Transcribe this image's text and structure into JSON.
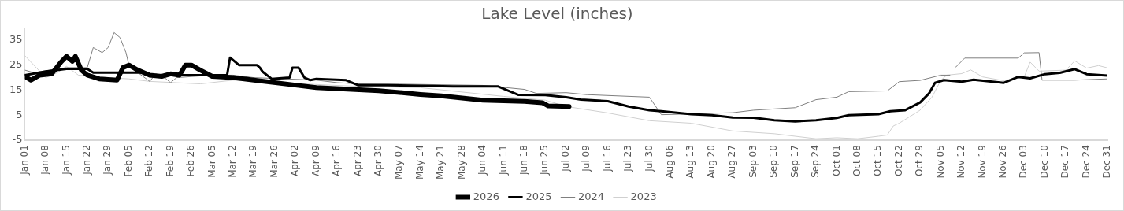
{
  "chart_data": {
    "type": "line",
    "title": "Lake Level (inches)",
    "legend": "bottom",
    "grid": false,
    "marker": "none",
    "line_style": "solid",
    "ylim": [
      -5,
      40
    ],
    "yticks": [
      -5,
      5,
      15,
      25,
      35
    ],
    "xlim": [
      "--01-01",
      "--12-31"
    ],
    "xticks": [
      {
        "value": "--01-01",
        "label": "Jan 01"
      },
      {
        "value": "--01-08",
        "label": "Jan 08"
      },
      {
        "value": "--01-15",
        "label": "Jan 15"
      },
      {
        "value": "--01-22",
        "label": "Jan 22"
      },
      {
        "value": "--01-29",
        "label": "Jan 29"
      },
      {
        "value": "--02-05",
        "label": "Feb 05"
      },
      {
        "value": "--02-12",
        "label": "Feb 12"
      },
      {
        "value": "--02-19",
        "label": "Feb 19"
      },
      {
        "value": "--02-26",
        "label": "Feb 26"
      },
      {
        "value": "--03-05",
        "label": "Mar 05"
      },
      {
        "value": "--03-12",
        "label": "Mar 12"
      },
      {
        "value": "--03-19",
        "label": "Mar 19"
      },
      {
        "value": "--03-26",
        "label": "Mar 26"
      },
      {
        "value": "--04-02",
        "label": "Apr 02"
      },
      {
        "value": "--04-09",
        "label": "Apr 09"
      },
      {
        "value": "--04-16",
        "label": "Apr 16"
      },
      {
        "value": "--04-23",
        "label": "Apr 23"
      },
      {
        "value": "--04-30",
        "label": "Apr 30"
      },
      {
        "value": "--05-07",
        "label": "May 07"
      },
      {
        "value": "--05-14",
        "label": "May 14"
      },
      {
        "value": "--05-21",
        "label": "May 21"
      },
      {
        "value": "--05-28",
        "label": "May 28"
      },
      {
        "value": "--06-04",
        "label": "Jun 04"
      },
      {
        "value": "--06-11",
        "label": "Jun 11"
      },
      {
        "value": "--06-18",
        "label": "Jun 18"
      },
      {
        "value": "--06-25",
        "label": "Jun 25"
      },
      {
        "value": "--07-02",
        "label": "Jul 02"
      },
      {
        "value": "--07-09",
        "label": "Jul 09"
      },
      {
        "value": "--07-16",
        "label": "Jul 16"
      },
      {
        "value": "--07-23",
        "label": "Jul 23"
      },
      {
        "value": "--07-30",
        "label": "Jul 30"
      },
      {
        "value": "--08-06",
        "label": "Aug 06"
      },
      {
        "value": "--08-13",
        "label": "Aug 13"
      },
      {
        "value": "--08-20",
        "label": "Aug 20"
      },
      {
        "value": "--08-27",
        "label": "Aug 27"
      },
      {
        "value": "--09-03",
        "label": "Sep 03"
      },
      {
        "value": "--09-10",
        "label": "Sep 10"
      },
      {
        "value": "--09-17",
        "label": "Sep 17"
      },
      {
        "value": "--09-24",
        "label": "Sep 24"
      },
      {
        "value": "--10-01",
        "label": "Oct 01"
      },
      {
        "value": "--10-08",
        "label": "Oct 08"
      },
      {
        "value": "--10-15",
        "label": "Oct 15"
      },
      {
        "value": "--10-22",
        "label": "Oct 22"
      },
      {
        "value": "--10-29",
        "label": "Oct 29"
      },
      {
        "value": "--11-05",
        "label": "Nov 05"
      },
      {
        "value": "--11-12",
        "label": "Nov 12"
      },
      {
        "value": "--11-19",
        "label": "Nov 19"
      },
      {
        "value": "--11-26",
        "label": "Nov 26"
      },
      {
        "value": "--12-03",
        "label": "Dec 03"
      },
      {
        "value": "--12-10",
        "label": "Dec 10"
      },
      {
        "value": "--12-17",
        "label": "Dec 17"
      },
      {
        "value": "--12-24",
        "label": "Dec 24"
      },
      {
        "value": "--12-31",
        "label": "Dec 31"
      }
    ],
    "series": [
      {
        "name": "2026",
        "color": "#000000",
        "x": [
          "--01-01",
          "--01-03",
          "--01-06",
          "--01-10",
          "--01-13",
          "--01-15",
          "--01-17",
          "--01-18",
          "--01-20",
          "--01-22",
          "--01-26",
          "--02-01",
          "--02-03",
          "--02-05",
          "--02-08",
          "--02-12",
          "--02-16",
          "--02-19",
          "--02-22",
          "--02-24",
          "--02-26",
          "--03-01",
          "--03-05",
          "--03-12",
          "--03-19",
          "--04-02",
          "--04-09",
          "--04-30",
          "--05-14",
          "--05-21",
          "--06-04",
          "--06-18",
          "--06-24",
          "--06-26",
          "--07-03"
        ],
        "values": [
          20.5,
          19,
          21,
          21.5,
          26,
          28.5,
          26.5,
          28.5,
          23,
          21,
          19.5,
          19,
          24,
          25,
          23,
          21,
          20.5,
          21.5,
          21,
          25,
          25,
          23,
          20.5,
          20,
          19,
          17,
          16,
          14.8,
          13.3,
          12.7,
          11,
          10.5,
          10,
          8.7,
          8.5
        ]
      },
      {
        "name": "2025",
        "color": "#000000",
        "x": [
          "--01-01",
          "--01-08",
          "--01-15",
          "--01-22",
          "--01-24",
          "--02-10",
          "--02-12",
          "--03-10",
          "--03-11",
          "--03-14",
          "--03-20",
          "--03-21",
          "--03-22",
          "--03-25",
          "--03-31",
          "--04-01",
          "--04-03",
          "--04-05",
          "--04-07",
          "--04-09",
          "--04-19",
          "--04-23",
          "--05-03",
          "--05-25",
          "--06-09",
          "--06-16",
          "--06-25",
          "--07-02",
          "--07-07",
          "--07-16",
          "--07-23",
          "--07-30",
          "--08-03",
          "--08-13",
          "--08-20",
          "--08-27",
          "--09-03",
          "--09-10",
          "--09-17",
          "--09-24",
          "--10-01",
          "--10-05",
          "--10-15",
          "--10-19",
          "--10-24",
          "--10-29",
          "--11-01",
          "--11-03",
          "--11-06",
          "--11-12",
          "--11-16",
          "--11-26",
          "--12-01",
          "--12-05",
          "--12-10",
          "--12-15",
          "--12-20",
          "--12-24",
          "--12-31"
        ],
        "values": [
          21,
          22.5,
          23.5,
          23.5,
          22,
          22,
          21,
          21,
          28,
          25,
          25,
          24,
          22.3,
          19.5,
          20,
          24,
          24,
          20,
          19,
          19.5,
          19,
          17,
          17,
          16.5,
          16.5,
          13.1,
          13,
          12.2,
          11.2,
          10.6,
          8.5,
          7,
          6.6,
          5.4,
          5,
          4.1,
          4,
          3,
          2.5,
          3,
          3.9,
          5,
          5.4,
          6.6,
          7,
          10.1,
          13.7,
          17.9,
          19,
          18.4,
          19.2,
          17.9,
          20.3,
          19.7,
          21.4,
          21.9,
          23.4,
          21.4,
          20.8
        ]
      },
      {
        "name": "2024",
        "color": "#7f7f7f",
        "x": [
          "--01-01",
          "--01-04",
          "--01-15",
          "--01-22",
          "--01-24",
          "--01-27",
          "--01-29",
          "--01-31",
          "--02-02",
          "--02-04",
          "--02-05",
          "--02-08",
          "--02-12",
          "--02-14",
          "--02-17",
          "--02-19",
          "--02-21",
          "--03-05",
          "--03-12",
          "--03-19",
          "--04-09",
          "--04-16",
          "--04-23",
          "--05-07",
          "--06-04",
          "--06-18",
          "--06-22",
          "--07-02",
          "--07-09",
          "--07-30",
          "--08-03",
          "--08-27",
          "--09-03",
          "--09-17",
          "--09-24",
          "--10-01",
          "--10-05",
          "--10-18",
          "--10-22",
          "--10-29",
          "--11-05",
          "--11-08",
          "--11-09",
          "--11-10",
          "--11-13",
          "--12-01",
          "--12-03",
          "--12-08",
          "--12-09",
          "--12-20",
          "--12-31"
        ],
        "values": [
          23,
          22,
          24,
          24,
          32,
          30,
          32,
          38,
          36,
          30,
          25,
          22,
          18.5,
          21.5,
          20,
          18,
          20,
          21,
          21,
          20,
          19,
          18,
          17.5,
          17.4,
          16.9,
          15.3,
          13.7,
          14,
          13.2,
          12.2,
          5.2,
          6,
          7,
          8,
          11.2,
          12.2,
          14.4,
          14.7,
          18.4,
          18.9,
          21,
          21,
          null,
          24.2,
          27.8,
          27.8,
          29.9,
          30,
          19,
          19,
          19.5
        ]
      },
      {
        "name": "2023",
        "color": "#d0d0d0",
        "x": [
          "--01-01",
          "--01-08",
          "--01-12",
          "--01-15",
          "--01-19",
          "--01-29",
          "--02-05",
          "--02-12",
          "--03-01",
          "--03-12",
          "--03-26",
          "--04-23",
          "--05-14",
          "--06-11",
          "--06-25",
          "--07-02",
          "--07-16",
          "--07-30",
          "--08-13",
          "--08-27",
          "--09-10",
          "--09-24",
          "--10-01",
          "--10-08",
          "--10-15",
          "--10-18",
          "--10-20",
          "--10-22",
          "--10-29",
          "--11-02",
          "--11-05",
          "--11-07",
          "--11-12",
          "--11-15",
          "--11-19",
          "--11-26",
          "--12-03",
          "--12-05",
          "--12-08",
          "--12-17",
          "--12-20",
          "--12-24",
          "--12-28",
          "--12-31"
        ],
        "values": [
          28.8,
          20,
          22,
          24.5,
          21,
          20,
          19.5,
          18.5,
          17.5,
          19,
          18,
          16.5,
          16,
          12.5,
          11,
          8.5,
          5.9,
          2.8,
          1.8,
          -1.3,
          -2.4,
          -4.4,
          -4,
          -4.4,
          -3.4,
          -2.9,
          0.7,
          1.8,
          7,
          12.2,
          19,
          21,
          21.6,
          23.1,
          20.3,
          18.8,
          20.3,
          26.2,
          22.6,
          23,
          26.7,
          23.8,
          24.8,
          23.9
        ]
      }
    ]
  }
}
